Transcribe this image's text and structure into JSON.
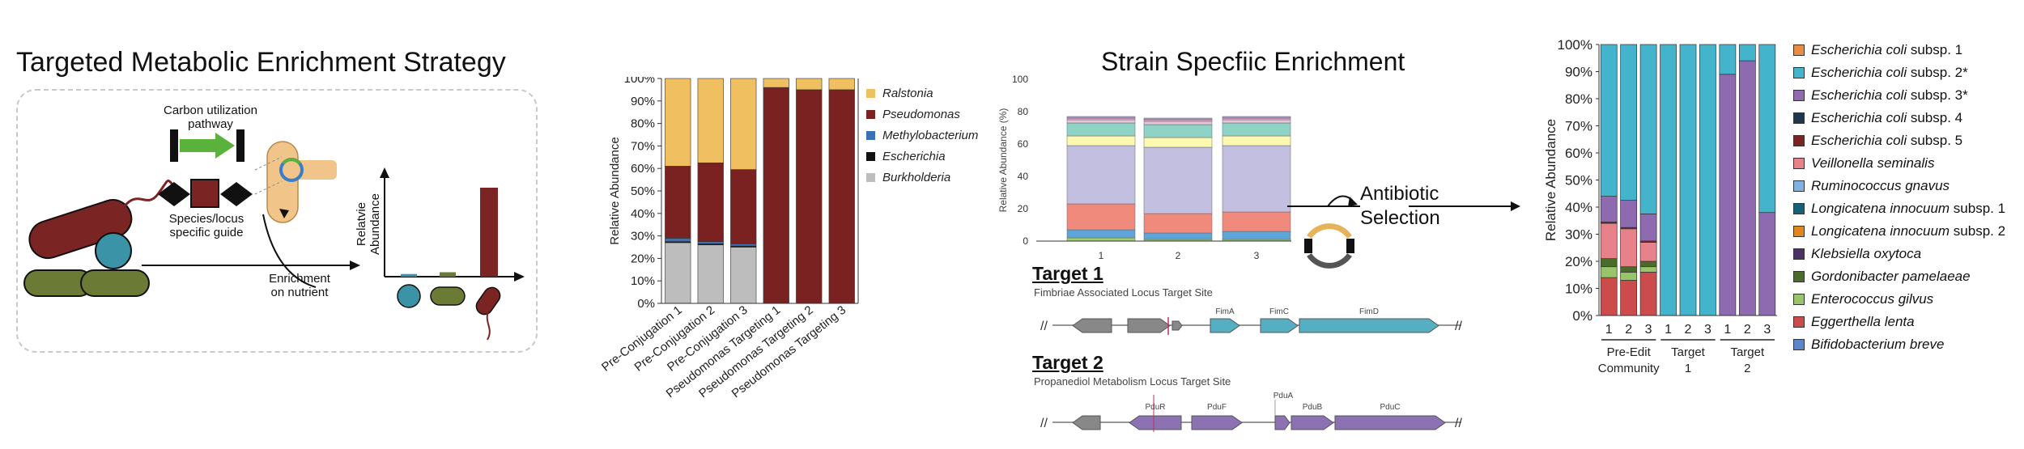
{
  "panel_a": {
    "title": "Targeted Metabolic Enrichment Strategy",
    "carbon_label_1": "Carbon utilization",
    "carbon_label_2": "pathway",
    "guide_label_1": "Species/locus",
    "guide_label_2": "specific guide",
    "enrich_label_1": "Enrichment",
    "enrich_label_2": "on nutrient",
    "yaxis_1": "Relatvie",
    "yaxis_2": "Abundance",
    "colors": {
      "red": "#7a2424",
      "olive": "#6b7a34",
      "teal": "#3a93a6",
      "green": "#5ab23c",
      "cell": "#f1c58a"
    },
    "mini_bars": [
      0.03,
      0.05,
      1.0
    ]
  },
  "chart_b": {
    "type": "bar",
    "stacked": true,
    "ylabel": "Relative Abundance",
    "yticks": [
      "0%",
      "10%",
      "20%",
      "30%",
      "40%",
      "50%",
      "60%",
      "70%",
      "80%",
      "90%",
      "100%"
    ],
    "ylim": [
      0,
      100
    ],
    "categories": [
      "Pre-Conjugation 1",
      "Pre-Conjugation 2",
      "Pre-Conjugation 3",
      "Pseudomonas Targeting 1",
      "Pseudomonas Targeting 2",
      "Pseudomonas Targeting 3"
    ],
    "legend_placement": "right",
    "series": [
      {
        "name": "Burkholderia",
        "color": "#bdbdbd",
        "values": [
          27,
          26,
          25,
          0,
          0,
          0
        ]
      },
      {
        "name": "Escherichia",
        "color": "#111111",
        "values": [
          0.5,
          0.5,
          0.5,
          0,
          0,
          0
        ]
      },
      {
        "name": "Methylobacterium",
        "color": "#3b6fb6",
        "values": [
          1.5,
          1,
          1,
          0,
          0,
          0
        ]
      },
      {
        "name": "Pseudomonas",
        "color": "#7a2222",
        "values": [
          32,
          35,
          33,
          96,
          95,
          95
        ]
      },
      {
        "name": "Ralstonia",
        "color": "#f0c060",
        "values": [
          39,
          37.5,
          40.5,
          4,
          5,
          5
        ]
      }
    ],
    "legend_order": [
      "Ralstonia",
      "Pseudomonas",
      "Methylobacterium",
      "Escherichia",
      "Burkholderia"
    ]
  },
  "chart_c": {
    "type": "bar",
    "stacked": true,
    "title": "Strain Specfiic Enrichment",
    "ylabel": "Relative Abundance (%)",
    "yticks": [
      "0",
      "20",
      "40",
      "60",
      "80",
      "100"
    ],
    "ylim": [
      0,
      100
    ],
    "categories": [
      "1",
      "2",
      "3"
    ],
    "series": [
      {
        "color": "#9fce6e",
        "values": [
          2,
          1,
          1
        ]
      },
      {
        "color": "#5fa4d8",
        "values": [
          5,
          4,
          5
        ]
      },
      {
        "color": "#f08a7c",
        "values": [
          16,
          12,
          12
        ]
      },
      {
        "color": "#c2bfe0",
        "values": [
          36,
          41,
          41
        ]
      },
      {
        "color": "#fbfab0",
        "values": [
          6,
          6,
          6
        ]
      },
      {
        "color": "#8ed3c6",
        "values": [
          8,
          8,
          8
        ]
      },
      {
        "color": "#e9c3dc",
        "values": [
          2,
          2,
          2
        ]
      },
      {
        "color": "#f2a4c6",
        "values": [
          1,
          1,
          1
        ]
      },
      {
        "color": "#9d9ac9",
        "values": [
          1,
          1,
          1
        ]
      }
    ]
  },
  "selection": {
    "line_1": "Antibiotic",
    "line_2": "Selection"
  },
  "target1": {
    "title": "Target 1",
    "subtitle": "Fimbriae Associated Locus Target Site",
    "genes": [
      "FimA",
      "FimC",
      "FimD"
    ]
  },
  "target2": {
    "title": "Target 2",
    "subtitle": "Propanediol Metabolism Locus Target Site",
    "genes": [
      "PduR",
      "PduF",
      "PduA",
      "PduB",
      "PduC"
    ]
  },
  "chart_d": {
    "type": "bar",
    "stacked": true,
    "ylabel": "Relative Abundance",
    "yticks": [
      "0%",
      "10%",
      "20%",
      "30%",
      "40%",
      "50%",
      "60%",
      "70%",
      "80%",
      "90%",
      "100%"
    ],
    "ylim": [
      0,
      100
    ],
    "categories": [
      "1",
      "2",
      "3",
      "1",
      "2",
      "3",
      "1",
      "2",
      "3"
    ],
    "groups": [
      {
        "label_1": "Pre-Edit",
        "label_2": "Community",
        "size": 3
      },
      {
        "label_1": "Target",
        "label_2": "1",
        "size": 3
      },
      {
        "label_1": "Target",
        "label_2": "2",
        "size": 3
      }
    ],
    "series": [
      {
        "name": "Bifidobacterium breve",
        "color": "#5b86c9",
        "values": [
          0,
          0,
          0,
          0,
          0,
          0,
          0,
          0,
          0
        ]
      },
      {
        "name": "Eggerthella lenta",
        "color": "#cc4b4b",
        "values": [
          14,
          13,
          16,
          0,
          0,
          0,
          0,
          0,
          0
        ]
      },
      {
        "name": "Enterococcus gilvus",
        "color": "#98c46a",
        "values": [
          4,
          3,
          2,
          0,
          0,
          0,
          0,
          0,
          0
        ]
      },
      {
        "name": "Gordonibacter pamelaeae",
        "color": "#4a6b2a",
        "values": [
          3,
          2,
          2,
          0,
          0,
          0,
          0,
          0,
          0
        ]
      },
      {
        "name": "Klebsiella oxytoca",
        "color": "#4a3364",
        "values": [
          0,
          0,
          0,
          0,
          0,
          0,
          0,
          0,
          0
        ]
      },
      {
        "name": "Longicatena innocuum subsp. 2",
        "color": "#e0861e",
        "values": [
          0,
          0,
          0,
          0,
          0,
          0,
          0,
          0,
          0
        ]
      },
      {
        "name": "Longicatena innocuum subsp. 1",
        "color": "#17607a",
        "values": [
          0,
          0,
          0,
          0,
          0,
          0,
          0,
          0,
          0
        ]
      },
      {
        "name": "Ruminococcus gnavus",
        "color": "#7fb2e0",
        "values": [
          0,
          0,
          0,
          0,
          0,
          0,
          0,
          0,
          0
        ]
      },
      {
        "name": "Veillonella seminalis",
        "color": "#e8828a",
        "values": [
          13,
          14,
          7,
          0,
          0,
          0,
          0,
          0,
          0
        ]
      },
      {
        "name": "Escherichia coli subsp. 5",
        "color": "#7a2424",
        "values": [
          0.5,
          0.5,
          0.5,
          0,
          0,
          0,
          0,
          0,
          0
        ]
      },
      {
        "name": "Escherichia coli subsp. 4",
        "color": "#1f3550",
        "values": [
          0,
          0,
          0,
          0,
          0,
          0,
          0,
          0,
          0
        ]
      },
      {
        "name": "Escherichia coli subsp. 3*",
        "color": "#8e6bb0",
        "values": [
          9.5,
          10,
          10,
          0,
          0,
          0,
          89,
          94,
          38
        ]
      },
      {
        "name": "Escherichia coli subsp. 2*",
        "color": "#44b3cc",
        "values": [
          56,
          57.5,
          62.5,
          100,
          100,
          100,
          11,
          6,
          62
        ]
      },
      {
        "name": "Escherichia coli subsp. 1",
        "color": "#e98c44",
        "values": [
          0,
          0,
          0,
          0,
          0,
          0,
          0,
          0,
          0
        ]
      }
    ],
    "legend_placement": "right",
    "legend": [
      {
        "genus": "Escherichia coli",
        "sub": "subsp. 1",
        "color": "#e98c44"
      },
      {
        "genus": "Escherichia coli",
        "sub": "subsp. 2*",
        "color": "#44b3cc"
      },
      {
        "genus": "Escherichia coli",
        "sub": "subsp. 3*",
        "color": "#8e6bb0"
      },
      {
        "genus": "Escherichia coli",
        "sub": "subsp. 4",
        "color": "#1f3550"
      },
      {
        "genus": "Escherichia coli",
        "sub": "subsp. 5",
        "color": "#7a2424"
      },
      {
        "genus": "Veillonella seminalis",
        "sub": "",
        "color": "#e8828a"
      },
      {
        "genus": "Ruminococcus gnavus",
        "sub": "",
        "color": "#7fb2e0"
      },
      {
        "genus": "Longicatena innocuum",
        "sub": "subsp. 1",
        "color": "#17607a"
      },
      {
        "genus": "Longicatena innocuum",
        "sub": "subsp. 2",
        "color": "#e0861e"
      },
      {
        "genus": "Klebsiella oxytoca",
        "sub": "",
        "color": "#4a3364"
      },
      {
        "genus": "Gordonibacter pamelaeae",
        "sub": "",
        "color": "#4a6b2a"
      },
      {
        "genus": "Enterococcus gilvus",
        "sub": "",
        "color": "#98c46a"
      },
      {
        "genus": "Eggerthella lenta",
        "sub": "",
        "color": "#cc4b4b"
      },
      {
        "genus": "Bifidobacterium breve",
        "sub": "",
        "color": "#5b86c9"
      }
    ]
  }
}
